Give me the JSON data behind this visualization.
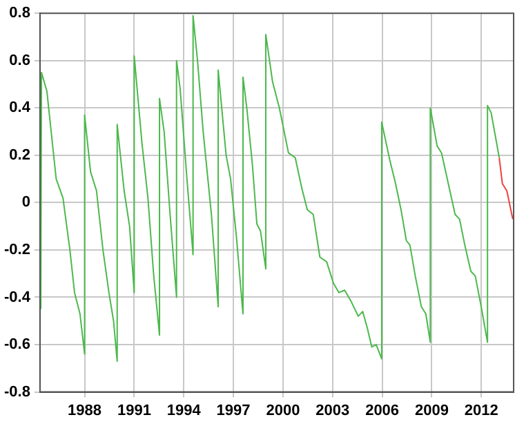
{
  "chart_data": {
    "type": "line",
    "xlim": [
      1985.3,
      2013.95
    ],
    "ylim": [
      -0.8,
      0.8
    ],
    "xticks": [
      1988,
      1991,
      1994,
      1997,
      2000,
      2003,
      2006,
      2009,
      2012
    ],
    "yticks": [
      -0.8,
      -0.6,
      -0.4,
      -0.2,
      0,
      0.2,
      0.4,
      0.6,
      0.8
    ],
    "grid": true,
    "legend": false,
    "marker": "none",
    "line_style": "solid",
    "series": [
      {
        "color": "#4cb84c",
        "x": [
          1985.35,
          1985.39,
          1985.72,
          1986.28,
          1986.69,
          1987.11,
          1987.39,
          1987.72,
          1988.0,
          1988.0,
          1988.36,
          1988.72,
          1989.11,
          1989.47,
          1989.75,
          1989.97,
          1989.97,
          1990.39,
          1990.72,
          1991.0,
          1991.0,
          1991.47,
          1991.83,
          1992.17,
          1992.53,
          1992.53,
          1992.81,
          1993.17,
          1993.56,
          1993.56,
          1993.78,
          1994.19,
          1994.56,
          1994.56,
          1994.83,
          1995.17,
          1995.67,
          1996.08,
          1996.08,
          1996.56,
          1996.83,
          1997.19,
          1997.58,
          1997.58,
          1997.81,
          1998.15,
          1998.42,
          1998.64,
          1998.96,
          1998.96,
          1999.37,
          1999.78,
          2000.33,
          2000.74,
          2001.14,
          2001.47,
          2001.83,
          2002.23,
          2002.64,
          2003.05,
          2003.38,
          2003.73,
          2004.14,
          2004.55,
          2004.82,
          2005.1,
          2005.37,
          2005.64,
          2005.97,
          2005.97,
          2006.46,
          2006.81,
          2007.14,
          2007.46,
          2007.68,
          2008.0,
          2008.37,
          2008.64,
          2008.91,
          2008.91,
          2009.32,
          2009.59,
          2010.0,
          2010.41,
          2010.68,
          2011.0,
          2011.36,
          2011.63,
          2011.99,
          2012.37,
          2012.37,
          2012.59,
          2013.08
        ],
        "values": [
          -0.45,
          0.55,
          0.47,
          0.1,
          0.02,
          -0.2,
          -0.38,
          -0.47,
          -0.64,
          0.37,
          0.13,
          0.05,
          -0.2,
          -0.38,
          -0.5,
          -0.67,
          0.33,
          0.05,
          -0.1,
          -0.38,
          0.62,
          0.25,
          0.02,
          -0.3,
          -0.56,
          0.44,
          0.3,
          -0.05,
          -0.4,
          0.6,
          0.48,
          0.1,
          -0.22,
          0.79,
          0.6,
          0.3,
          -0.05,
          -0.44,
          0.56,
          0.2,
          0.1,
          -0.15,
          -0.47,
          0.53,
          0.4,
          0.16,
          -0.09,
          -0.12,
          -0.28,
          0.71,
          0.51,
          0.4,
          0.21,
          0.19,
          0.06,
          -0.03,
          -0.05,
          -0.23,
          -0.25,
          -0.34,
          -0.38,
          -0.37,
          -0.42,
          -0.48,
          -0.46,
          -0.53,
          -0.61,
          -0.6,
          -0.66,
          0.34,
          0.18,
          0.08,
          -0.03,
          -0.16,
          -0.18,
          -0.31,
          -0.44,
          -0.47,
          -0.59,
          0.4,
          0.24,
          0.21,
          0.08,
          -0.05,
          -0.07,
          -0.18,
          -0.29,
          -0.31,
          -0.44,
          -0.59,
          0.41,
          0.38,
          0.19
        ]
      },
      {
        "color": "#f04040",
        "x": [
          2013.08,
          2013.27,
          2013.54,
          2013.9
        ],
        "values": [
          0.19,
          0.08,
          0.05,
          -0.07
        ]
      }
    ]
  }
}
